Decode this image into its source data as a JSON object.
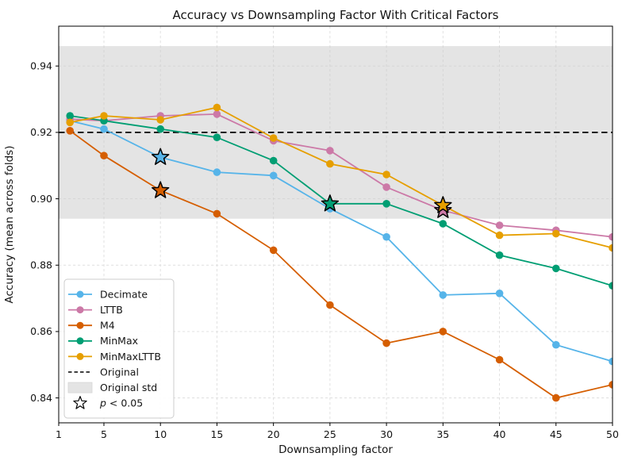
{
  "chart_data": {
    "type": "line",
    "title": "Accuracy vs Downsampling Factor With Critical Factors",
    "xlabel": "Downsampling factor",
    "ylabel": "Accuracy (mean across folds)",
    "xlim": [
      1,
      50
    ],
    "ylim": [
      0.8325,
      0.952
    ],
    "xticks": [
      1,
      5,
      10,
      15,
      20,
      25,
      30,
      35,
      40,
      45,
      50
    ],
    "yticks": [
      0.84,
      0.86,
      0.88,
      0.9,
      0.92,
      0.94
    ],
    "grid": true,
    "legend_position": "lower-left",
    "x": [
      2,
      5,
      10,
      15,
      20,
      25,
      30,
      35,
      40,
      45,
      50
    ],
    "series": [
      {
        "name": "Decimate",
        "color": "#56B4E9",
        "values": [
          0.9235,
          0.921,
          0.9125,
          0.908,
          0.907,
          0.897,
          0.8885,
          0.871,
          0.8715,
          0.856,
          0.851
        ],
        "significant_x": [
          10
        ]
      },
      {
        "name": "LTTB",
        "color": "#CC79A7",
        "values": [
          0.924,
          0.9235,
          0.925,
          0.9255,
          0.9175,
          0.9145,
          0.9035,
          0.8965,
          0.892,
          0.8905,
          0.8885
        ],
        "significant_x": [
          35
        ]
      },
      {
        "name": "M4",
        "color": "#D55E00",
        "values": [
          0.9205,
          0.913,
          0.9025,
          0.8955,
          0.8845,
          0.868,
          0.8565,
          0.86,
          0.8515,
          0.84,
          0.844
        ],
        "significant_x": [
          10
        ]
      },
      {
        "name": "MinMax",
        "color": "#009E73",
        "values": [
          0.925,
          0.9235,
          0.921,
          0.9185,
          0.9115,
          0.8985,
          0.8985,
          0.8925,
          0.883,
          0.879,
          0.8738
        ],
        "significant_x": [
          25
        ]
      },
      {
        "name": "MinMaxLTTB",
        "color": "#E69F00",
        "values": [
          0.923,
          0.925,
          0.9238,
          0.9275,
          0.9183,
          0.9105,
          0.9073,
          0.898,
          0.889,
          0.8895,
          0.8852
        ],
        "significant_x": [
          35
        ]
      }
    ],
    "reference_line": {
      "label": "Original",
      "value": 0.92,
      "style": "dashed",
      "color": "#000000"
    },
    "reference_band": {
      "label": "Original std",
      "min": 0.894,
      "max": 0.946,
      "color": "#e4e4e4"
    },
    "significance_marker": {
      "label": "p < 0.05",
      "shape": "star"
    }
  }
}
